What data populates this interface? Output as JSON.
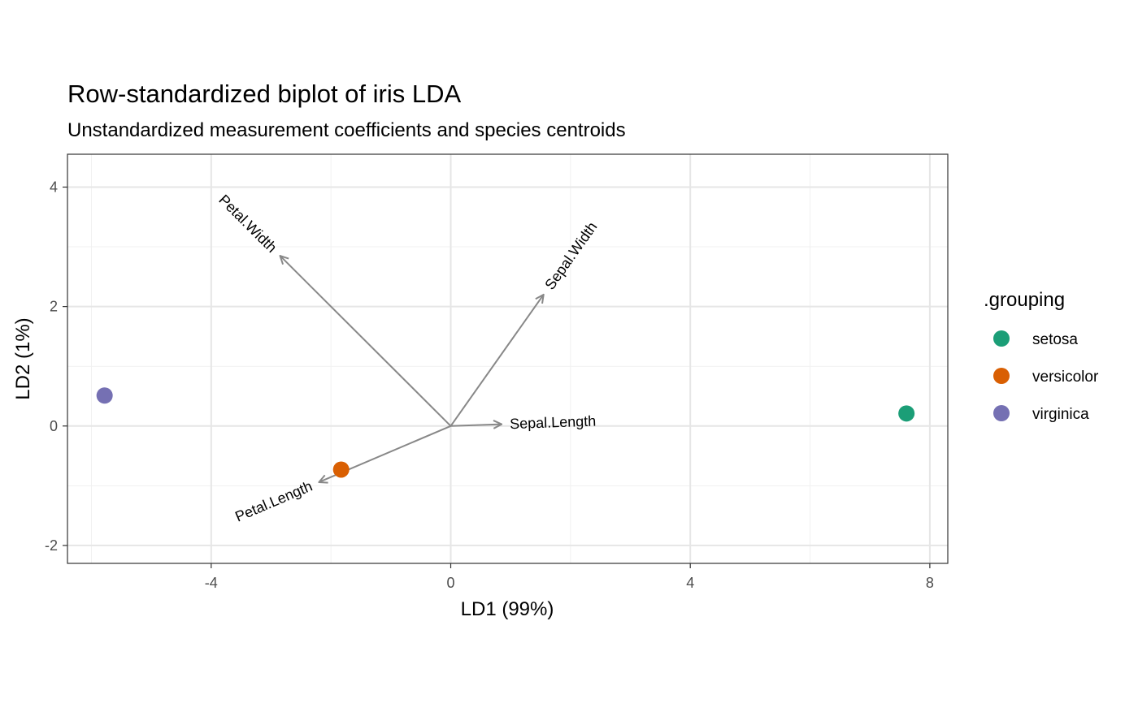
{
  "chart_data": {
    "type": "scatter",
    "title": "Row-standardized biplot of iris LDA",
    "subtitle": "Unstandardized measurement coefficients and species centroids",
    "xlabel": "LD1 (99%)",
    "ylabel": "LD2 (1%)",
    "xlim": [
      -6.4,
      8.3
    ],
    "ylim": [
      -2.3,
      4.55
    ],
    "x_ticks": [
      -4,
      0,
      4,
      8
    ],
    "x_tick_labels": [
      "-4",
      "0",
      "4",
      "8"
    ],
    "y_ticks": [
      -2,
      0,
      2,
      4
    ],
    "y_tick_labels": [
      "-2",
      "0",
      "2",
      "4"
    ],
    "grid": true,
    "legend": {
      "title": ".grouping",
      "placement": "right",
      "entries": [
        {
          "label": "setosa",
          "color": "#1B9E77"
        },
        {
          "label": "versicolor",
          "color": "#D95F02"
        },
        {
          "label": "virginica",
          "color": "#7570B3"
        }
      ]
    },
    "centroids": [
      {
        "group": "setosa",
        "x": 7.61,
        "y": 0.21
      },
      {
        "group": "versicolor",
        "x": -1.83,
        "y": -0.73
      },
      {
        "group": "virginica",
        "x": -5.78,
        "y": 0.51
      }
    ],
    "vectors": [
      {
        "label": "Sepal.Length",
        "x": 0.85,
        "y": 0.03
      },
      {
        "label": "Sepal.Width",
        "x": 1.55,
        "y": 2.2
      },
      {
        "label": "Petal.Length",
        "x": -2.2,
        "y": -0.94
      },
      {
        "label": "Petal.Width",
        "x": -2.85,
        "y": 2.85
      }
    ],
    "vector_color": "#888888"
  }
}
